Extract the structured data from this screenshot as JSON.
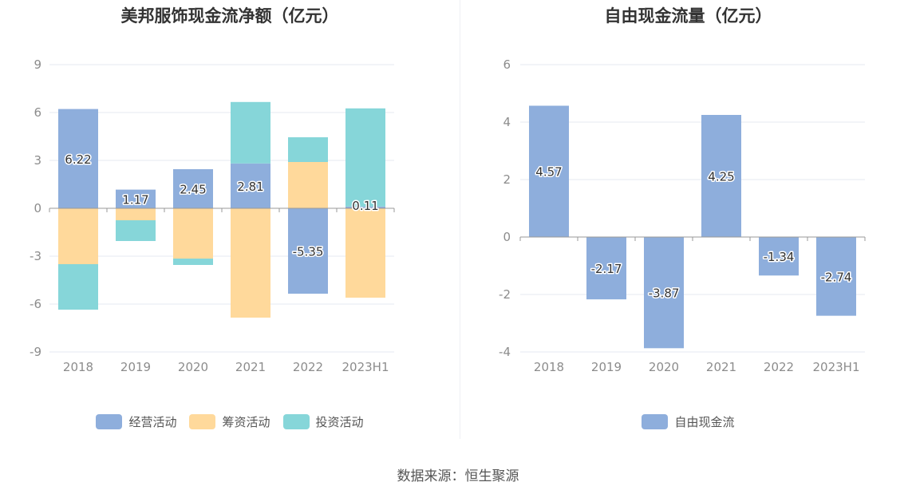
{
  "colors": {
    "operating": "#8eaedc",
    "financing": "#ffd99b",
    "investing": "#86d6d9",
    "free_cf": "#8eaedc"
  },
  "source_text": "数据来源：恒生聚源",
  "chart_data": [
    {
      "type": "bar",
      "stacked": true,
      "title": "美邦服饰现金流净额（亿元）",
      "categories": [
        "2018",
        "2019",
        "2020",
        "2021",
        "2022",
        "2023H1"
      ],
      "ylim": [
        -9,
        9
      ],
      "yticks": [
        -9,
        -6,
        -3,
        0,
        3,
        6,
        9
      ],
      "grid": true,
      "legend_position": "bottom",
      "series": [
        {
          "name": "经营活动",
          "color_key": "operating",
          "values": [
            6.22,
            1.17,
            2.45,
            2.81,
            -5.35,
            0.11
          ],
          "labels": [
            "6.22",
            "1.17",
            "2.45",
            "2.81",
            "-5.35",
            "0.11"
          ]
        },
        {
          "name": "筹资活动",
          "color_key": "financing",
          "values": [
            -3.5,
            -0.75,
            -3.15,
            -6.85,
            2.9,
            -5.6
          ]
        },
        {
          "name": "投资活动",
          "color_key": "investing",
          "values": [
            -2.85,
            -1.3,
            -0.4,
            3.85,
            1.55,
            6.15
          ]
        }
      ]
    },
    {
      "type": "bar",
      "title": "自由现金流量（亿元）",
      "categories": [
        "2018",
        "2019",
        "2020",
        "2021",
        "2022",
        "2023H1"
      ],
      "ylim": [
        -4,
        6
      ],
      "yticks": [
        -4,
        -2,
        0,
        2,
        4,
        6
      ],
      "grid": true,
      "legend_position": "bottom",
      "series": [
        {
          "name": "自由现金流",
          "color_key": "free_cf",
          "values": [
            4.57,
            -2.17,
            -3.87,
            4.25,
            -1.34,
            -2.74
          ],
          "labels": [
            "4.57",
            "-2.17",
            "-3.87",
            "4.25",
            "-1.34",
            "-2.74"
          ]
        }
      ]
    }
  ]
}
